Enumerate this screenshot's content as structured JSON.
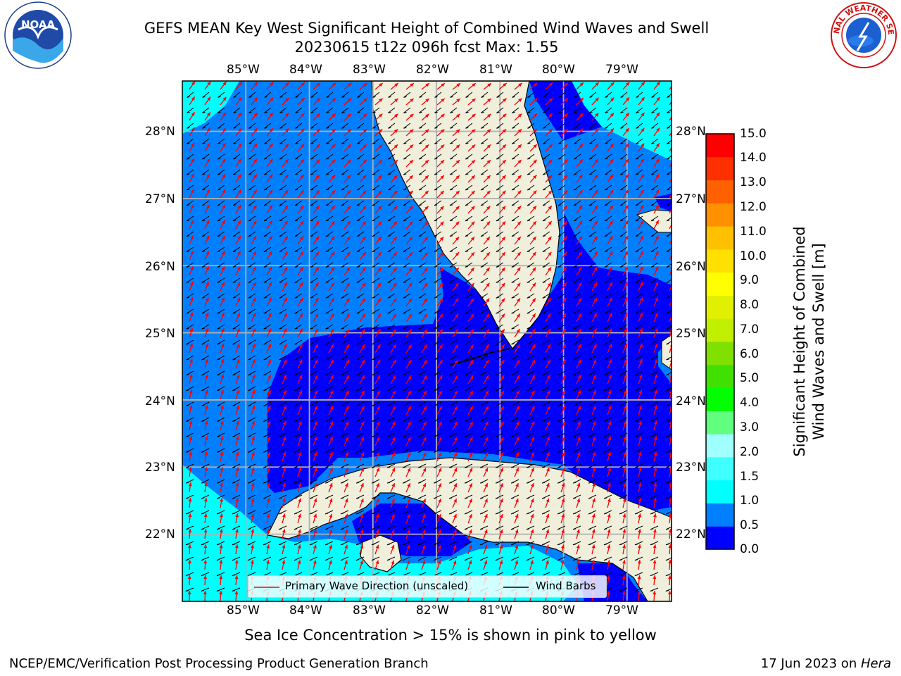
{
  "header": {
    "title_line1": "GEFS MEAN Key West Significant Height of Combined Wind Waves and Swell",
    "title_line2": "20230615 t12z 096h fcst   Max: 1.55"
  },
  "logos": {
    "left_text": "NOAA",
    "right_text": "NATIONAL WEATHER SERVICE"
  },
  "map": {
    "lon_labels": [
      "85°W",
      "84°W",
      "83°W",
      "82°W",
      "81°W",
      "80°W",
      "79°W"
    ],
    "lat_labels": [
      "28°N",
      "27°N",
      "26°N",
      "25°N",
      "24°N",
      "23°N",
      "22°N"
    ],
    "lon_range": [
      -86.0,
      -78.3
    ],
    "lat_range": [
      21.0,
      28.75
    ],
    "colors": {
      "land": "#efefdc",
      "ocean_deep": "#0000ff",
      "ocean_mid": "#0080ff",
      "ocean_high": "#00ffff",
      "grid": "#b0b0b0",
      "wave_arrow": "#ff0000",
      "wind_barb": "#000000"
    }
  },
  "legend": {
    "wave_label": "Primary Wave Direction (unscaled)",
    "wind_label": "Wind Barbs"
  },
  "colorbar": {
    "label_line1": "Significant Height of Combined",
    "label_line2": "Wind Waves and Swell [m]",
    "ticks": [
      "15.0",
      "14.0",
      "13.0",
      "12.0",
      "11.0",
      "10.0",
      "9.0",
      "8.0",
      "7.0",
      "6.0",
      "5.0",
      "4.0",
      "3.0",
      "2.0",
      "1.5",
      "1.0",
      "0.5",
      "0.0"
    ],
    "colors_bottom_to_top": [
      "#0000ff",
      "#0080ff",
      "#00ffff",
      "#40ffff",
      "#a0ffff",
      "#60ff80",
      "#00ff00",
      "#40e000",
      "#80e000",
      "#c0f000",
      "#e0f000",
      "#ffff00",
      "#ffe000",
      "#ffc000",
      "#ff9000",
      "#ff6000",
      "#ff3000",
      "#ff0000"
    ]
  },
  "notes": {
    "sea_ice": "Sea Ice Concentration > 15% is shown in pink to yellow"
  },
  "footer": {
    "left": "NCEP/EMC/Verification Post Processing Product Generation Branch",
    "date": "17 Jun 2023 on ",
    "host": "Hera"
  }
}
